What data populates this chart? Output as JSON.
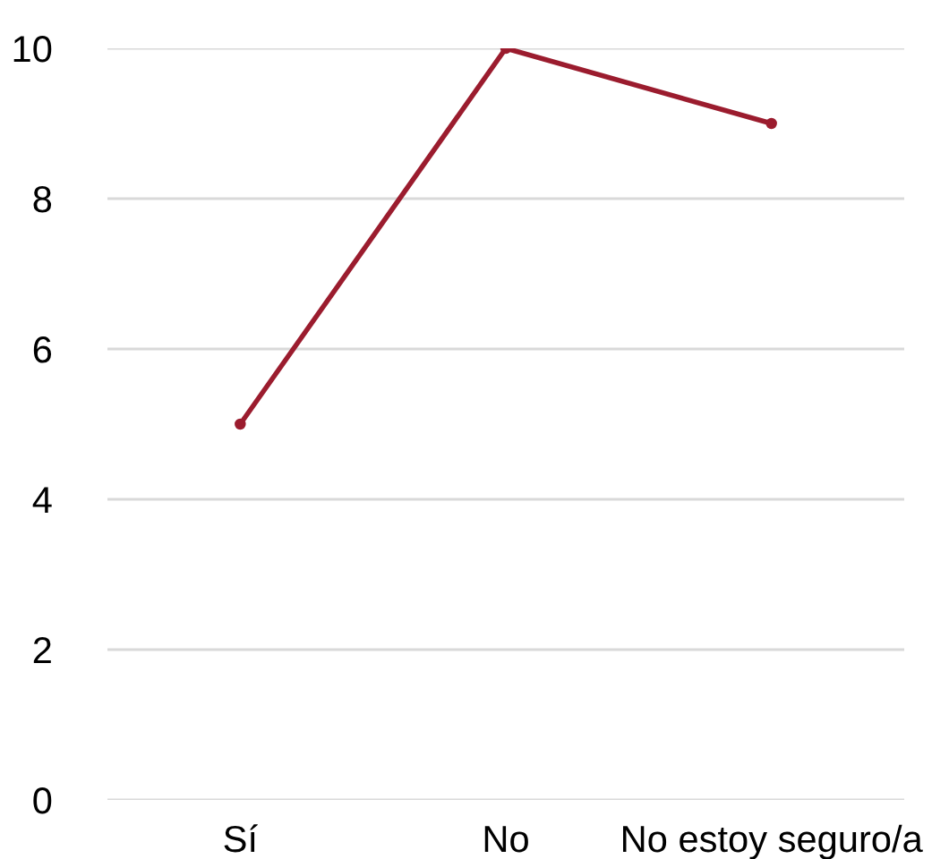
{
  "chart_data": {
    "type": "line",
    "categories": [
      "Sí",
      "No",
      "No estoy seguro/a"
    ],
    "series": [
      {
        "color": "#9b1c2e",
        "values": [
          5,
          10,
          9
        ]
      }
    ],
    "ylim": [
      0,
      10
    ],
    "yticks": [
      0,
      2,
      4,
      6,
      8,
      10
    ],
    "grid": "y",
    "marker": "circle",
    "line_style": "solid"
  }
}
